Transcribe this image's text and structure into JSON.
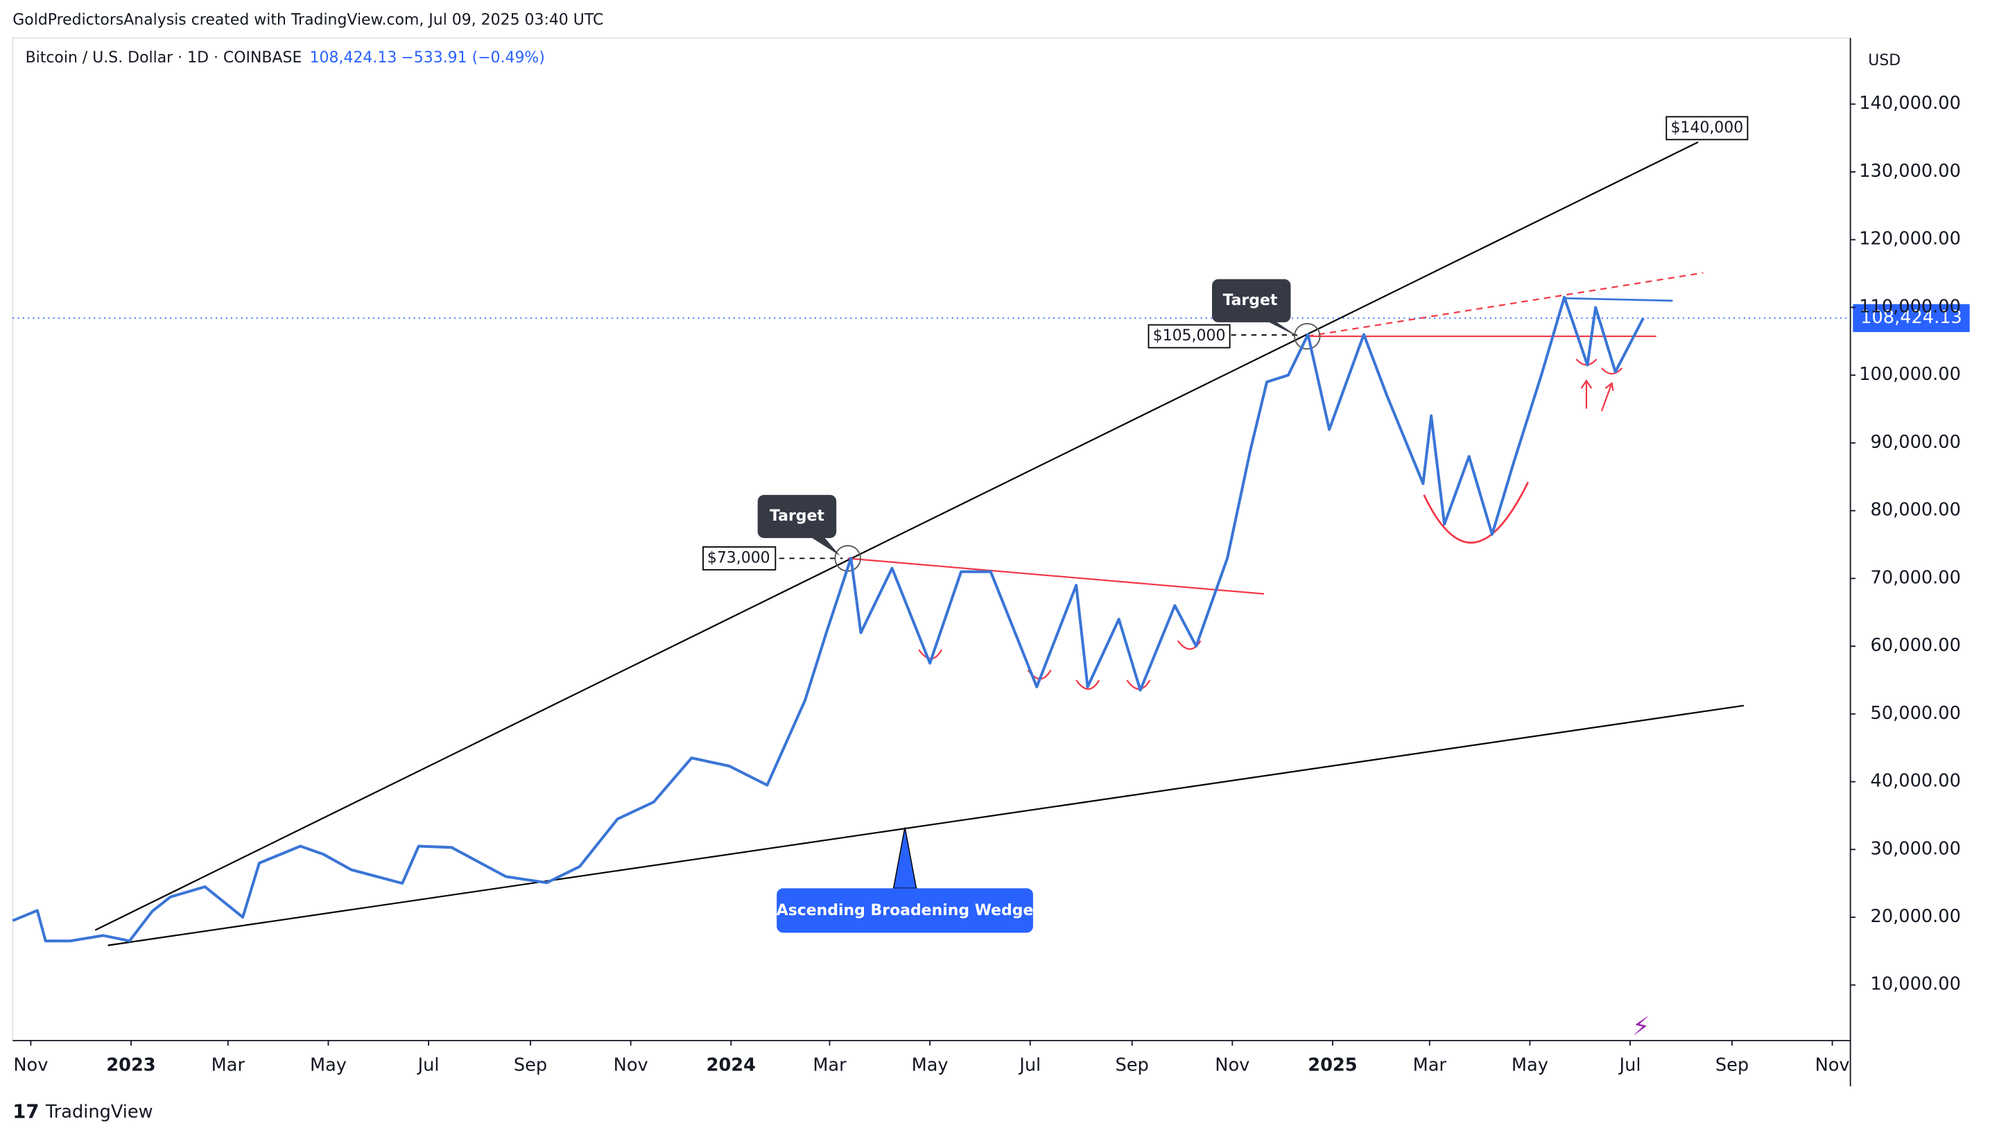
{
  "chart_data": {
    "type": "line",
    "attribution": "GoldPredictorsAnalysis created with TradingView.com, Jul 09, 2025 03:40 UTC",
    "title": "Bitcoin / U.S. Dollar · 1D · COINBASE",
    "change": "−533.91 (−0.49%)",
    "currency": "USD",
    "brand": "TradingView",
    "last_price": {
      "value": 108424.13,
      "label": "108,424.13"
    },
    "annotations": [
      "$140,000",
      "$105,000",
      "$73,000",
      "Target",
      "Target",
      "Ascending Broadening Wedge"
    ],
    "color": "#3a75d6",
    "x": [
      "2022-10-21",
      "2022-11-05",
      "2022-11-10",
      "2022-11-25",
      "2022-12-15",
      "2022-12-31",
      "2023-01-14",
      "2023-01-25",
      "2023-02-15",
      "2023-03-10",
      "2023-03-20",
      "2023-04-14",
      "2023-04-28",
      "2023-05-15",
      "2023-06-15",
      "2023-06-25",
      "2023-07-15",
      "2023-08-17",
      "2023-09-11",
      "2023-10-01",
      "2023-10-24",
      "2023-11-15",
      "2023-12-08",
      "2023-12-31",
      "2024-01-23",
      "2024-02-15",
      "2024-02-28",
      "2024-03-14",
      "2024-03-20",
      "2024-04-08",
      "2024-05-01",
      "2024-05-20",
      "2024-06-07",
      "2024-07-05",
      "2024-07-29",
      "2024-08-05",
      "2024-08-24",
      "2024-09-06",
      "2024-09-27",
      "2024-10-10",
      "2024-10-29",
      "2024-11-12",
      "2024-11-22",
      "2024-12-05",
      "2024-12-17",
      "2024-12-30",
      "2025-01-20",
      "2025-02-03",
      "2025-02-25",
      "2025-03-02",
      "2025-03-10",
      "2025-03-25",
      "2025-04-08",
      "2025-04-21",
      "2025-05-08",
      "2025-05-22",
      "2025-06-05",
      "2025-06-10",
      "2025-06-22",
      "2025-07-09"
    ],
    "values": [
      19500,
      21000,
      16500,
      16500,
      17300,
      16500,
      20900,
      23000,
      24500,
      20000,
      28000,
      30500,
      29300,
      27000,
      25000,
      30500,
      30300,
      26000,
      25100,
      27500,
      34500,
      37000,
      43500,
      42300,
      39500,
      52000,
      62000,
      73000,
      62000,
      71500,
      57500,
      71000,
      71000,
      54000,
      69000,
      54000,
      64000,
      53500,
      66000,
      60000,
      73000,
      89000,
      99000,
      100000,
      106000,
      92000,
      106000,
      97000,
      84000,
      94000,
      78000,
      88000,
      76500,
      87000,
      100000,
      111500,
      101500,
      110000,
      100500,
      108424
    ],
    "xlim": [
      "2022-10-21",
      "2025-11-12"
    ],
    "xticks": [
      {
        "value": "2022-11-01",
        "label": "Nov"
      },
      {
        "value": "2023-01-01",
        "label": "2023"
      },
      {
        "value": "2023-03-01",
        "label": "Mar"
      },
      {
        "value": "2023-05-01",
        "label": "May"
      },
      {
        "value": "2023-07-01",
        "label": "Jul"
      },
      {
        "value": "2023-09-01",
        "label": "Sep"
      },
      {
        "value": "2023-11-01",
        "label": "Nov"
      },
      {
        "value": "2024-01-01",
        "label": "2024"
      },
      {
        "value": "2024-03-01",
        "label": "Mar"
      },
      {
        "value": "2024-05-01",
        "label": "May"
      },
      {
        "value": "2024-07-01",
        "label": "Jul"
      },
      {
        "value": "2024-09-01",
        "label": "Sep"
      },
      {
        "value": "2024-11-01",
        "label": "Nov"
      },
      {
        "value": "2025-01-01",
        "label": "2025"
      },
      {
        "value": "2025-03-01",
        "label": "Mar"
      },
      {
        "value": "2025-05-01",
        "label": "May"
      },
      {
        "value": "2025-07-01",
        "label": "Jul"
      },
      {
        "value": "2025-09-01",
        "label": "Sep"
      },
      {
        "value": "2025-11-01",
        "label": "Nov"
      }
    ],
    "ylim": [
      1800,
      149750
    ],
    "yticks": [
      {
        "value": 10000,
        "label": "10,000.00"
      },
      {
        "value": 20000,
        "label": "20,000.00"
      },
      {
        "value": 30000,
        "label": "30,000.00"
      },
      {
        "value": 40000,
        "label": "40,000.00"
      },
      {
        "value": 50000,
        "label": "50,000.00"
      },
      {
        "value": 60000,
        "label": "60,000.00"
      },
      {
        "value": 70000,
        "label": "70,000.00"
      },
      {
        "value": 80000,
        "label": "80,000.00"
      },
      {
        "value": 90000,
        "label": "90,000.00"
      },
      {
        "value": 100000,
        "label": "100,000.00"
      },
      {
        "value": 110000,
        "label": "110,000.00"
      },
      {
        "value": 120000,
        "label": "120,000.00"
      },
      {
        "value": 130000,
        "label": "130,000.00"
      },
      {
        "value": 140000,
        "label": "140,000.00"
      }
    ],
    "grid": false
  }
}
